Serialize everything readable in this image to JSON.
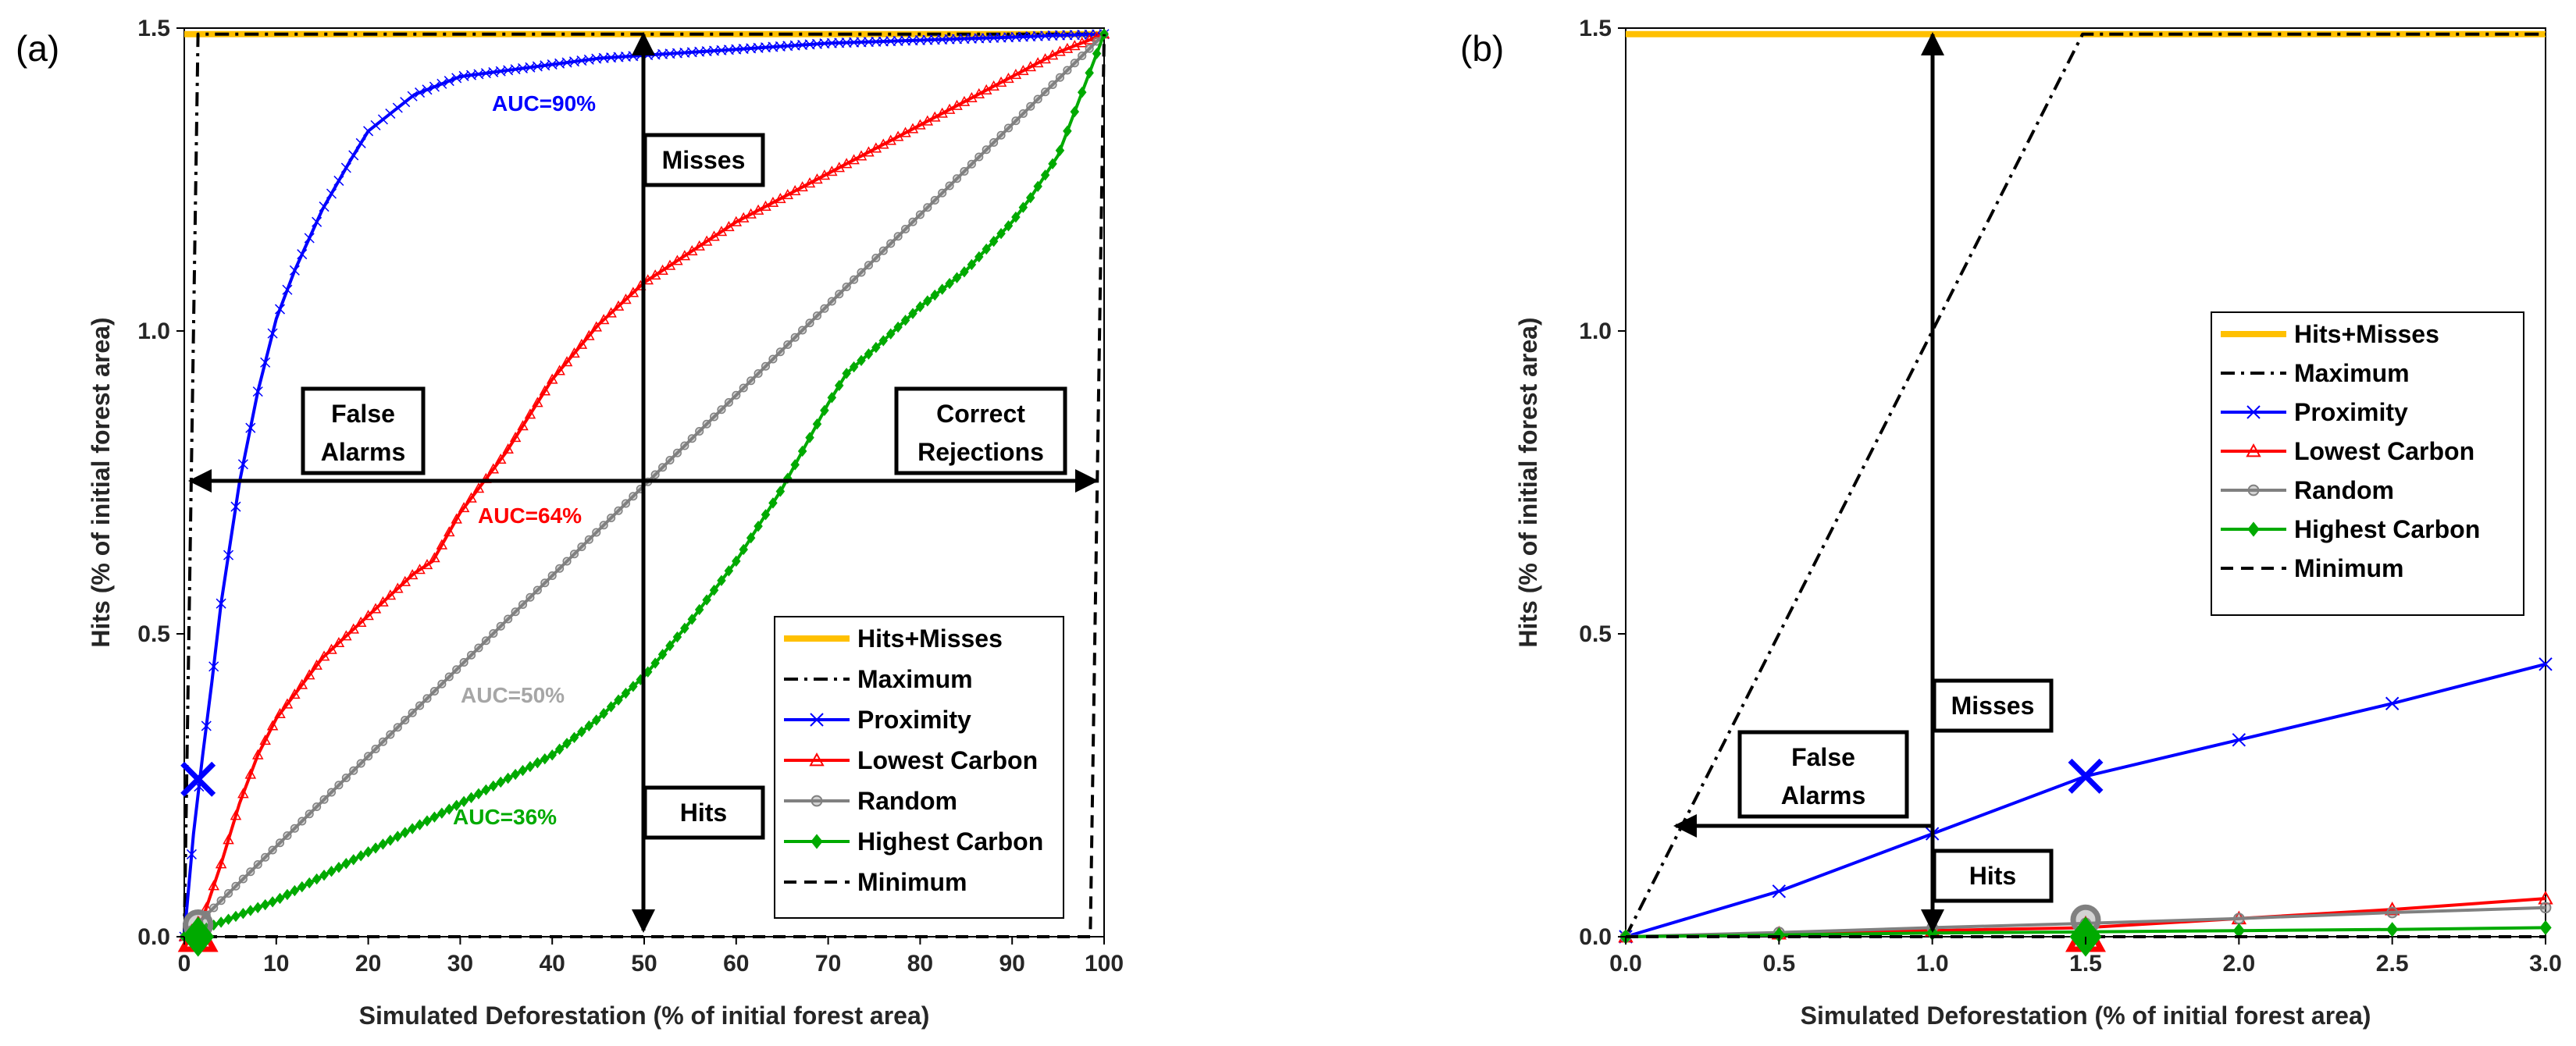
{
  "chart_data": [
    {
      "panel_label": "(a)",
      "type": "line",
      "xlabel": "Simulated Deforestation (% of initial forest area)",
      "ylabel": "Hits (% of initial forest area)",
      "xlim": [
        0,
        100
      ],
      "ylim": [
        0,
        1.5
      ],
      "xticks": [
        0,
        10,
        20,
        30,
        40,
        50,
        60,
        70,
        80,
        90,
        100
      ],
      "xtick_labels": [
        "0",
        "10",
        "20",
        "30",
        "40",
        "50",
        "60",
        "70",
        "80",
        "90",
        "100"
      ],
      "yticks": [
        0,
        0.5,
        1.0,
        1.5
      ],
      "ytick_labels": [
        "0.0",
        "0.5",
        "1.0",
        "1.5"
      ],
      "series": [
        {
          "name": "Hits+Misses",
          "color": "#FFC000",
          "style": "solid",
          "x": [
            0,
            100
          ],
          "y": [
            1.49,
            1.49
          ]
        },
        {
          "name": "Maximum",
          "color": "#000000",
          "style": "dashdot",
          "x": [
            0,
            1.49,
            100
          ],
          "y": [
            0,
            1.49,
            1.49
          ]
        },
        {
          "name": "Proximity",
          "color": "#0000FF",
          "style": "solid",
          "marker": "x",
          "x": [
            0,
            1,
            2,
            3,
            4,
            5,
            6,
            8,
            10,
            12,
            15,
            18,
            20,
            25,
            30,
            35,
            40,
            45,
            50,
            60,
            70,
            80,
            90,
            95,
            100
          ],
          "y": [
            0,
            0.17,
            0.3,
            0.42,
            0.55,
            0.65,
            0.75,
            0.9,
            1.02,
            1.1,
            1.2,
            1.28,
            1.33,
            1.39,
            1.42,
            1.43,
            1.44,
            1.45,
            1.455,
            1.465,
            1.475,
            1.48,
            1.485,
            1.488,
            1.49
          ]
        },
        {
          "name": "Lowest Carbon",
          "color": "#FF0000",
          "style": "solid",
          "marker": "triangle",
          "x": [
            0,
            2,
            4,
            6,
            8,
            10,
            15,
            20,
            25,
            27,
            30,
            35,
            40,
            45,
            50,
            55,
            60,
            65,
            70,
            75,
            80,
            85,
            90,
            95,
            100
          ],
          "y": [
            0,
            0.03,
            0.12,
            0.22,
            0.3,
            0.36,
            0.46,
            0.53,
            0.6,
            0.62,
            0.7,
            0.8,
            0.92,
            1.01,
            1.08,
            1.13,
            1.18,
            1.22,
            1.26,
            1.3,
            1.34,
            1.38,
            1.42,
            1.46,
            1.49
          ]
        },
        {
          "name": "Random",
          "color": "#808080",
          "style": "solid",
          "marker": "circle",
          "x": [
            0,
            100
          ],
          "y": [
            0,
            1.49
          ]
        },
        {
          "name": "Highest Carbon",
          "color": "#00AA00",
          "style": "solid",
          "marker": "diamond",
          "x": [
            0,
            5,
            10,
            20,
            30,
            40,
            45,
            50,
            55,
            60,
            65,
            70,
            72,
            75,
            80,
            85,
            90,
            92,
            95,
            97,
            100
          ],
          "y": [
            0,
            0.03,
            0.06,
            0.14,
            0.22,
            0.3,
            0.36,
            0.43,
            0.52,
            0.62,
            0.74,
            0.88,
            0.93,
            0.97,
            1.04,
            1.1,
            1.18,
            1.22,
            1.29,
            1.37,
            1.49
          ]
        },
        {
          "name": "Minimum",
          "color": "#000000",
          "style": "dashed",
          "x": [
            0,
            98.5,
            100
          ],
          "y": [
            0,
            0,
            1.49
          ]
        }
      ],
      "big_markers": [
        {
          "series": "Proximity",
          "x": 1.5,
          "y": 0.26
        },
        {
          "series": "Lowest Carbon",
          "x": 1.5,
          "y": 0.0
        },
        {
          "series": "Random",
          "x": 1.5,
          "y": 0.02
        },
        {
          "series": "Highest Carbon",
          "x": 1.5,
          "y": 0.0
        }
      ],
      "annotations": [
        {
          "text": "AUC=90%",
          "color": "#0000FF",
          "x": 40,
          "y": 1.39
        },
        {
          "text": "AUC=64%",
          "color": "#FF0000",
          "x": 38.5,
          "y": 0.69
        },
        {
          "text": "AUC=50%",
          "color": "#A6A6A6",
          "x": 37,
          "y": 0.44
        },
        {
          "text": "AUC=36%",
          "color": "#00AA00",
          "x": 38,
          "y": 0.23
        }
      ],
      "boxes": [
        {
          "lines": [
            "Misses"
          ]
        },
        {
          "lines": [
            "False",
            "Alarms"
          ]
        },
        {
          "lines": [
            "Correct",
            "Rejections"
          ]
        },
        {
          "lines": [
            "Hits"
          ]
        }
      ],
      "legend": {
        "position": "bottom-right",
        "entries": [
          "Hits+Misses",
          "Maximum",
          "Proximity",
          "Lowest Carbon",
          "Random",
          "Highest Carbon",
          "Minimum"
        ]
      }
    },
    {
      "panel_label": "(b)",
      "type": "line",
      "xlabel": "Simulated Deforestation (% of initial forest area)",
      "ylabel": "Hits (% of initial forest area)",
      "xlim": [
        0,
        3
      ],
      "ylim": [
        0,
        1.5
      ],
      "xticks": [
        0,
        0.5,
        1.0,
        1.5,
        2.0,
        2.5,
        3.0
      ],
      "xtick_labels": [
        "0.0",
        "0.5",
        "1.0",
        "1.5",
        "2.0",
        "2.5",
        "3.0"
      ],
      "yticks": [
        0,
        0.5,
        1.0,
        1.5
      ],
      "ytick_labels": [
        "0.0",
        "0.5",
        "1.0",
        "1.5"
      ],
      "series": [
        {
          "name": "Hits+Misses",
          "color": "#FFC000",
          "style": "solid",
          "x": [
            0,
            3
          ],
          "y": [
            1.49,
            1.49
          ]
        },
        {
          "name": "Maximum",
          "color": "#000000",
          "style": "dashdot",
          "x": [
            0,
            1.49,
            3
          ],
          "y": [
            0,
            1.49,
            1.49
          ]
        },
        {
          "name": "Proximity",
          "color": "#0000FF",
          "style": "solid",
          "marker": "x",
          "x": [
            0,
            0.5,
            1.0,
            1.5,
            2.0,
            2.5,
            3.0
          ],
          "y": [
            0,
            0.075,
            0.17,
            0.265,
            0.325,
            0.385,
            0.45
          ]
        },
        {
          "name": "Lowest Carbon",
          "color": "#FF0000",
          "style": "solid",
          "marker": "triangle",
          "x": [
            0,
            0.5,
            1.0,
            1.5,
            2.0,
            2.5,
            3.0
          ],
          "y": [
            0,
            0.005,
            0.01,
            0.015,
            0.03,
            0.045,
            0.063
          ]
        },
        {
          "name": "Random",
          "color": "#808080",
          "style": "solid",
          "marker": "circle",
          "x": [
            0,
            0.5,
            1.0,
            1.5,
            2.0,
            2.5,
            3.0
          ],
          "y": [
            0,
            0.007,
            0.015,
            0.022,
            0.03,
            0.04,
            0.048
          ]
        },
        {
          "name": "Highest Carbon",
          "color": "#00AA00",
          "style": "solid",
          "marker": "diamond",
          "x": [
            0,
            0.5,
            1.0,
            1.5,
            2.0,
            2.5,
            3.0
          ],
          "y": [
            0,
            0.003,
            0.006,
            0.008,
            0.01,
            0.012,
            0.015
          ]
        },
        {
          "name": "Minimum",
          "color": "#000000",
          "style": "dashed",
          "x": [
            0,
            3
          ],
          "y": [
            0,
            0
          ]
        }
      ],
      "big_markers": [
        {
          "series": "Proximity",
          "x": 1.5,
          "y": 0.265
        },
        {
          "series": "Lowest Carbon",
          "x": 1.5,
          "y": 0.0
        },
        {
          "series": "Random",
          "x": 1.5,
          "y": 0.028
        },
        {
          "series": "Highest Carbon",
          "x": 1.5,
          "y": 0.0
        }
      ],
      "annotations": [],
      "boxes": [
        {
          "lines": [
            "Misses"
          ]
        },
        {
          "lines": [
            "False",
            "Alarms"
          ]
        },
        {
          "lines": [
            "Hits"
          ]
        }
      ],
      "legend": {
        "position": "top-right",
        "entries": [
          "Hits+Misses",
          "Maximum",
          "Proximity",
          "Lowest Carbon",
          "Random",
          "Highest Carbon",
          "Minimum"
        ]
      }
    }
  ]
}
